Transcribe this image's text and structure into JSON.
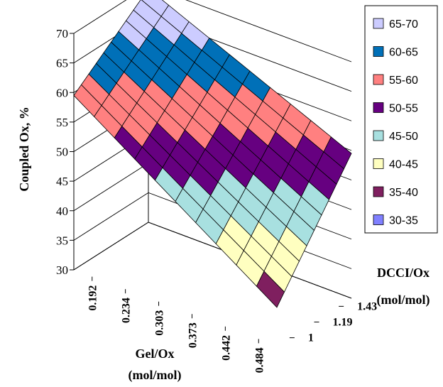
{
  "chart_data": {
    "type": "surface",
    "title": "",
    "zlabel": "Coupled Ox, %",
    "xlabel_line1": "Gel/Ox",
    "xlabel_line2": "(mol/mol)",
    "ylabel_line1": "DCCI/Ox",
    "ylabel_line2": "(mol/mol)",
    "zlim": [
      30,
      70
    ],
    "z_ticks": [
      "30",
      "35",
      "40",
      "45",
      "50",
      "55",
      "60",
      "65",
      "70"
    ],
    "x_ticks": [
      "0.192",
      "0.234",
      "0.303",
      "0.373",
      "0.442",
      "0.484"
    ],
    "y_ticks": [
      "1",
      "1.19",
      "1.43"
    ],
    "corners": {
      "gel_low_dcci_low": 59.5,
      "gel_low_dcci_high": 69.5,
      "gel_high_dcci_low": 36.5,
      "gel_high_dcci_high": 54.5
    },
    "legend": [
      {
        "label": "65-70",
        "color": "#ccccff"
      },
      {
        "label": "60-65",
        "color": "#0070b8"
      },
      {
        "label": "55-60",
        "color": "#ff8080"
      },
      {
        "label": "50-55",
        "color": "#660080"
      },
      {
        "label": "45-50",
        "color": "#a8e0e0"
      },
      {
        "label": "40-45",
        "color": "#ffffc0"
      },
      {
        "label": "35-40",
        "color": "#7f1f5f"
      },
      {
        "label": "30-35",
        "color": "#8080ff"
      }
    ],
    "legend_position": "right",
    "grid": true
  }
}
